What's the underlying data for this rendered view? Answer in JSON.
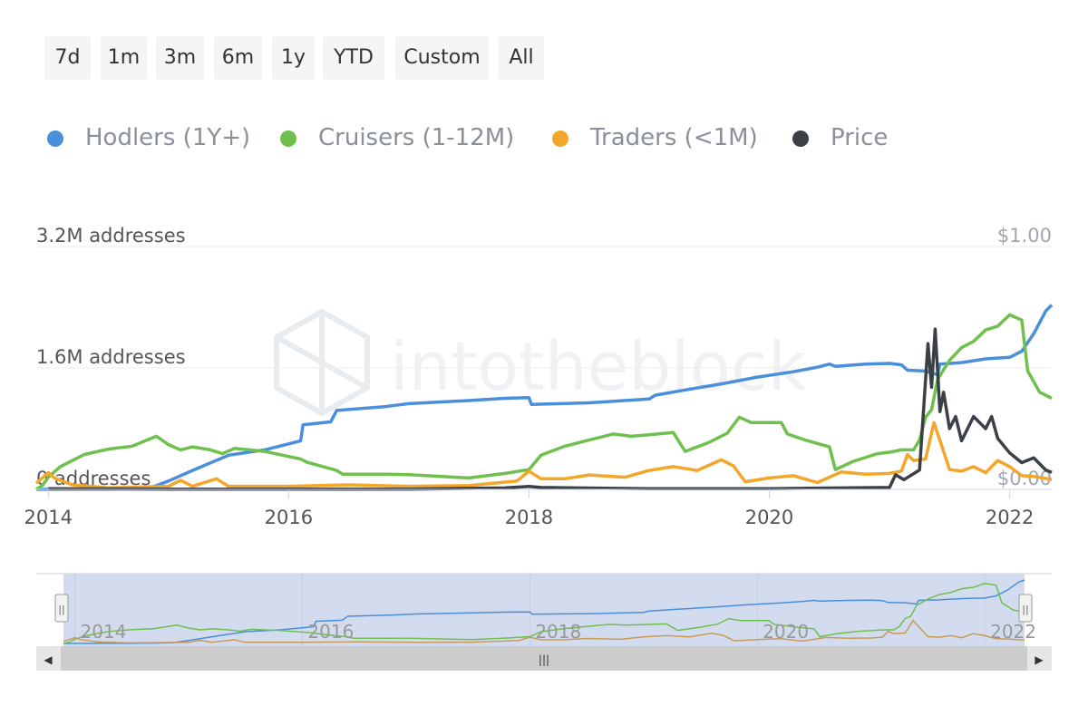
{
  "range_selector": {
    "buttons": [
      "7d",
      "1m",
      "3m",
      "6m",
      "1y",
      "YTD",
      "Custom",
      "All"
    ]
  },
  "colors": {
    "hodlers": "#4a8fdb",
    "cruisers": "#6fc04d",
    "traders": "#f3a62a",
    "price": "#3b4047",
    "grid": "#eeeeee",
    "axis_text": "#555555",
    "navigator_mask": "#d3dbef",
    "scrollbar_bg": "#f0f0f0"
  },
  "legend": [
    {
      "key": "hodlers",
      "label": "Hodlers (1Y+)"
    },
    {
      "key": "cruisers",
      "label": "Cruisers (1-12M)"
    },
    {
      "key": "traders",
      "label": "Traders (<1M)"
    },
    {
      "key": "price",
      "label": "Price"
    }
  ],
  "watermark": "intotheblock",
  "chart_data": {
    "type": "line",
    "y_axis_left": {
      "ticks": [
        {
          "value": 0,
          "label": "0 addresses"
        },
        {
          "value": 1600000,
          "label": "1.6M addresses"
        },
        {
          "value": 3200000,
          "label": "3.2M addresses"
        }
      ],
      "range": [
        0,
        3200000
      ]
    },
    "y_axis_right": {
      "ticks": [
        {
          "value": 0,
          "label": "$0.00"
        },
        {
          "value": 1,
          "label": "$1.00"
        }
      ],
      "range": [
        0,
        1
      ]
    },
    "x_axis": {
      "ticks": [
        "2014",
        "2016",
        "2018",
        "2020",
        "2022"
      ],
      "range": [
        2013.9,
        2022.35
      ]
    },
    "grid": true,
    "legend_position": "top-left",
    "series": [
      {
        "name": "Hodlers (1Y+)",
        "key": "hodlers",
        "axis": "left",
        "points": [
          [
            2013.9,
            0
          ],
          [
            2014.5,
            5000
          ],
          [
            2014.85,
            20000
          ],
          [
            2015.0,
            110000
          ],
          [
            2015.2,
            250000
          ],
          [
            2015.5,
            450000
          ],
          [
            2015.8,
            520000
          ],
          [
            2016.0,
            600000
          ],
          [
            2016.1,
            640000
          ],
          [
            2016.12,
            850000
          ],
          [
            2016.35,
            890000
          ],
          [
            2016.4,
            1040000
          ],
          [
            2016.8,
            1090000
          ],
          [
            2017.0,
            1130000
          ],
          [
            2017.5,
            1170000
          ],
          [
            2017.8,
            1200000
          ],
          [
            2018.0,
            1210000
          ],
          [
            2018.02,
            1120000
          ],
          [
            2018.5,
            1140000
          ],
          [
            2019.0,
            1190000
          ],
          [
            2019.05,
            1240000
          ],
          [
            2019.3,
            1310000
          ],
          [
            2019.6,
            1390000
          ],
          [
            2019.9,
            1480000
          ],
          [
            2020.2,
            1550000
          ],
          [
            2020.4,
            1610000
          ],
          [
            2020.5,
            1650000
          ],
          [
            2020.55,
            1620000
          ],
          [
            2020.8,
            1650000
          ],
          [
            2021.0,
            1660000
          ],
          [
            2021.1,
            1640000
          ],
          [
            2021.15,
            1570000
          ],
          [
            2021.3,
            1560000
          ],
          [
            2021.4,
            1510000
          ],
          [
            2021.42,
            1650000
          ],
          [
            2021.6,
            1670000
          ],
          [
            2021.8,
            1720000
          ],
          [
            2022.0,
            1740000
          ],
          [
            2022.1,
            1820000
          ],
          [
            2022.2,
            2050000
          ],
          [
            2022.3,
            2350000
          ],
          [
            2022.35,
            2430000
          ]
        ]
      },
      {
        "name": "Cruisers (1-12M)",
        "key": "cruisers",
        "axis": "left",
        "points": [
          [
            2013.9,
            0
          ],
          [
            2013.95,
            50000
          ],
          [
            2014.0,
            160000
          ],
          [
            2014.1,
            300000
          ],
          [
            2014.3,
            460000
          ],
          [
            2014.5,
            530000
          ],
          [
            2014.7,
            570000
          ],
          [
            2014.9,
            700000
          ],
          [
            2015.0,
            590000
          ],
          [
            2015.1,
            520000
          ],
          [
            2015.2,
            560000
          ],
          [
            2015.35,
            520000
          ],
          [
            2015.45,
            470000
          ],
          [
            2015.55,
            540000
          ],
          [
            2015.8,
            500000
          ],
          [
            2015.95,
            450000
          ],
          [
            2016.1,
            400000
          ],
          [
            2016.15,
            360000
          ],
          [
            2016.4,
            250000
          ],
          [
            2016.45,
            200000
          ],
          [
            2016.8,
            200000
          ],
          [
            2017.0,
            195000
          ],
          [
            2017.5,
            150000
          ],
          [
            2017.8,
            210000
          ],
          [
            2018.0,
            260000
          ],
          [
            2018.1,
            450000
          ],
          [
            2018.3,
            570000
          ],
          [
            2018.5,
            650000
          ],
          [
            2018.7,
            730000
          ],
          [
            2018.85,
            700000
          ],
          [
            2019.0,
            720000
          ],
          [
            2019.2,
            750000
          ],
          [
            2019.3,
            500000
          ],
          [
            2019.5,
            620000
          ],
          [
            2019.65,
            740000
          ],
          [
            2019.75,
            950000
          ],
          [
            2019.85,
            880000
          ],
          [
            2020.1,
            880000
          ],
          [
            2020.15,
            730000
          ],
          [
            2020.3,
            650000
          ],
          [
            2020.5,
            560000
          ],
          [
            2020.55,
            260000
          ],
          [
            2020.7,
            370000
          ],
          [
            2020.9,
            470000
          ],
          [
            2021.0,
            490000
          ],
          [
            2021.1,
            520000
          ],
          [
            2021.2,
            520000
          ],
          [
            2021.25,
            650000
          ],
          [
            2021.3,
            950000
          ],
          [
            2021.35,
            1050000
          ],
          [
            2021.4,
            1450000
          ],
          [
            2021.5,
            1700000
          ],
          [
            2021.6,
            1870000
          ],
          [
            2021.7,
            1950000
          ],
          [
            2021.8,
            2100000
          ],
          [
            2021.9,
            2150000
          ],
          [
            2022.0,
            2300000
          ],
          [
            2022.1,
            2230000
          ],
          [
            2022.15,
            1560000
          ],
          [
            2022.25,
            1280000
          ],
          [
            2022.35,
            1200000
          ]
        ]
      },
      {
        "name": "Traders (<1M)",
        "key": "traders",
        "axis": "left",
        "points": [
          [
            2013.9,
            80000
          ],
          [
            2014.0,
            220000
          ],
          [
            2014.05,
            150000
          ],
          [
            2014.2,
            60000
          ],
          [
            2014.5,
            20000
          ],
          [
            2015.0,
            40000
          ],
          [
            2015.1,
            120000
          ],
          [
            2015.2,
            40000
          ],
          [
            2015.4,
            140000
          ],
          [
            2015.5,
            40000
          ],
          [
            2016.0,
            40000
          ],
          [
            2016.5,
            60000
          ],
          [
            2017.0,
            40000
          ],
          [
            2017.5,
            50000
          ],
          [
            2017.9,
            110000
          ],
          [
            2018.0,
            240000
          ],
          [
            2018.1,
            140000
          ],
          [
            2018.3,
            140000
          ],
          [
            2018.5,
            190000
          ],
          [
            2018.8,
            160000
          ],
          [
            2019.0,
            250000
          ],
          [
            2019.2,
            300000
          ],
          [
            2019.4,
            250000
          ],
          [
            2019.6,
            390000
          ],
          [
            2019.7,
            310000
          ],
          [
            2019.8,
            100000
          ],
          [
            2020.0,
            150000
          ],
          [
            2020.2,
            180000
          ],
          [
            2020.4,
            90000
          ],
          [
            2020.6,
            230000
          ],
          [
            2020.8,
            200000
          ],
          [
            2021.0,
            210000
          ],
          [
            2021.1,
            240000
          ],
          [
            2021.15,
            460000
          ],
          [
            2021.2,
            380000
          ],
          [
            2021.3,
            400000
          ],
          [
            2021.37,
            880000
          ],
          [
            2021.45,
            500000
          ],
          [
            2021.5,
            260000
          ],
          [
            2021.6,
            240000
          ],
          [
            2021.7,
            300000
          ],
          [
            2021.8,
            220000
          ],
          [
            2021.9,
            380000
          ],
          [
            2022.0,
            300000
          ],
          [
            2022.1,
            180000
          ],
          [
            2022.2,
            170000
          ],
          [
            2022.35,
            130000
          ]
        ]
      },
      {
        "name": "Price",
        "key": "price",
        "axis": "right",
        "points": [
          [
            2014.0,
            0.003
          ],
          [
            2014.5,
            0.002
          ],
          [
            2015.0,
            0.001
          ],
          [
            2016.0,
            0.001
          ],
          [
            2017.0,
            0.001
          ],
          [
            2017.8,
            0.006
          ],
          [
            2018.0,
            0.012
          ],
          [
            2018.1,
            0.008
          ],
          [
            2019.0,
            0.003
          ],
          [
            2020.0,
            0.003
          ],
          [
            2021.0,
            0.008
          ],
          [
            2021.05,
            0.06
          ],
          [
            2021.12,
            0.04
          ],
          [
            2021.25,
            0.08
          ],
          [
            2021.32,
            0.6
          ],
          [
            2021.35,
            0.42
          ],
          [
            2021.38,
            0.66
          ],
          [
            2021.42,
            0.32
          ],
          [
            2021.45,
            0.4
          ],
          [
            2021.5,
            0.25
          ],
          [
            2021.55,
            0.3
          ],
          [
            2021.6,
            0.2
          ],
          [
            2021.7,
            0.3
          ],
          [
            2021.8,
            0.25
          ],
          [
            2021.85,
            0.3
          ],
          [
            2021.9,
            0.21
          ],
          [
            2022.0,
            0.15
          ],
          [
            2022.1,
            0.11
          ],
          [
            2022.2,
            0.13
          ],
          [
            2022.3,
            0.08
          ],
          [
            2022.35,
            0.07
          ]
        ]
      }
    ]
  },
  "navigator": {
    "ticks": [
      "2014",
      "2016",
      "2018",
      "2020",
      "2022"
    ],
    "handle_glyph": "||"
  },
  "scrollbar": {
    "left_arrow": "◀",
    "right_arrow": "▶",
    "grip": "|||"
  }
}
